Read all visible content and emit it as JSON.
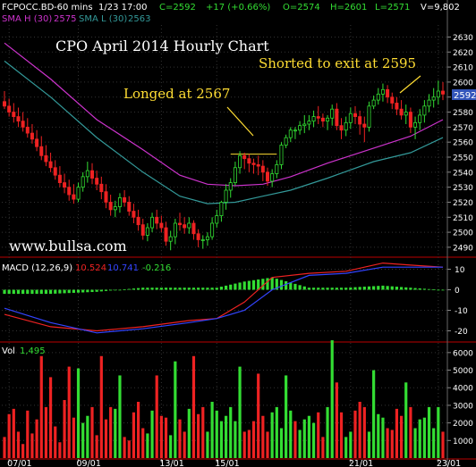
{
  "header": {
    "symbol": "FCPOCC.BD",
    "interval": "-60 mins",
    "datetime": "1/23 17:00",
    "close": "C=2592",
    "change": "+17 (+0.66%)",
    "open": "O=2574",
    "high": "H=2601",
    "low": "L=2571",
    "volume": "V=9,802",
    "sma_h_label": "SMA H (30)",
    "sma_h_value": "2575",
    "sma_l_label": "SMA L (30)",
    "sma_l_value": "2563"
  },
  "annotations": {
    "title": "CPO April 2014 Hourly Chart",
    "longed": "Longed at 2567",
    "shorted": "Shorted to exit at 2595",
    "watermark": "www.bullsa.com"
  },
  "macd": {
    "label": "MACD (12,26,9)",
    "macd_value": "10.524",
    "signal_value": "10.741",
    "hist_value": "-0.216"
  },
  "vol": {
    "label": "Vol",
    "value": "1,495"
  },
  "colors": {
    "up": "#33dd33",
    "down": "#ee2222",
    "sma_h": "#cc33cc",
    "sma_l": "#339999",
    "macd": "#ee2222",
    "signal": "#3344ff",
    "annotation": "#ffdd33",
    "grid": "#333333",
    "current_price_box": "#3355bb"
  },
  "chart_data": [
    {
      "type": "candlestick",
      "title": "CPO April 2014 Hourly Chart",
      "x_tick_labels": [
        "07/01",
        "09/01",
        "13/01",
        "15/01",
        "21/01",
        "23/01"
      ],
      "x_tick_indices": [
        1,
        16,
        34,
        46,
        75,
        94
      ],
      "y_ticks": [
        2490,
        2500,
        2510,
        2520,
        2530,
        2540,
        2550,
        2560,
        2570,
        2580,
        2590,
        2600,
        2610,
        2620,
        2630
      ],
      "ylim": [
        2484,
        2638
      ],
      "current_price": "2592",
      "series": [
        {
          "name": "candles",
          "open": [
            2587,
            2584,
            2580,
            2577,
            2574,
            2570,
            2566,
            2562,
            2557,
            2551,
            2547,
            2543,
            2538,
            2533,
            2530,
            2525,
            2522,
            2530,
            2537,
            2541,
            2536,
            2532,
            2527,
            2520,
            2515,
            2517,
            2523,
            2520,
            2514,
            2510,
            2505,
            2498,
            2503,
            2510,
            2506,
            2503,
            2494,
            2497,
            2506,
            2505,
            2503,
            2506,
            2499,
            2495,
            2495,
            2497,
            2506,
            2511,
            2520,
            2528,
            2533,
            2543,
            2551,
            2549,
            2546,
            2545,
            2544,
            2540,
            2534,
            2539,
            2545,
            2558,
            2563,
            2568,
            2568,
            2571,
            2572,
            2574,
            2577,
            2576,
            2574,
            2576,
            2582,
            2571,
            2568,
            2573,
            2579,
            2577,
            2572,
            2570,
            2584,
            2588,
            2592,
            2595,
            2590,
            2586,
            2582,
            2578,
            2580,
            2570,
            2573,
            2578,
            2584,
            2588,
            2590,
            2594
          ],
          "high": [
            2594,
            2589,
            2586,
            2583,
            2580,
            2576,
            2572,
            2568,
            2564,
            2558,
            2553,
            2548,
            2544,
            2539,
            2535,
            2532,
            2533,
            2540,
            2547,
            2546,
            2541,
            2537,
            2532,
            2525,
            2521,
            2526,
            2528,
            2524,
            2519,
            2515,
            2509,
            2506,
            2513,
            2515,
            2511,
            2507,
            2501,
            2509,
            2513,
            2510,
            2510,
            2508,
            2502,
            2498,
            2500,
            2510,
            2515,
            2521,
            2532,
            2536,
            2547,
            2554,
            2553,
            2552,
            2549,
            2551,
            2548,
            2543,
            2542,
            2548,
            2560,
            2565,
            2570,
            2570,
            2574,
            2578,
            2578,
            2581,
            2584,
            2579,
            2578,
            2585,
            2586,
            2576,
            2577,
            2583,
            2584,
            2581,
            2577,
            2587,
            2591,
            2596,
            2599,
            2598,
            2593,
            2590,
            2588,
            2585,
            2583,
            2577,
            2582,
            2588,
            2592,
            2596,
            2601,
            2600
          ],
          "low": [
            2582,
            2577,
            2573,
            2570,
            2567,
            2563,
            2559,
            2554,
            2548,
            2544,
            2540,
            2535,
            2530,
            2526,
            2521,
            2519,
            2520,
            2527,
            2533,
            2532,
            2528,
            2522,
            2516,
            2511,
            2510,
            2513,
            2517,
            2511,
            2506,
            2501,
            2495,
            2494,
            2500,
            2502,
            2500,
            2491,
            2488,
            2492,
            2501,
            2499,
            2499,
            2495,
            2490,
            2489,
            2491,
            2495,
            2503,
            2507,
            2515,
            2523,
            2531,
            2539,
            2542,
            2540,
            2539,
            2538,
            2534,
            2531,
            2530,
            2536,
            2542,
            2556,
            2560,
            2562,
            2565,
            2566,
            2568,
            2570,
            2572,
            2570,
            2568,
            2571,
            2568,
            2562,
            2564,
            2569,
            2572,
            2565,
            2560,
            2567,
            2582,
            2585,
            2587,
            2586,
            2582,
            2578,
            2575,
            2572,
            2566,
            2562,
            2568,
            2573,
            2580,
            2583,
            2585,
            2588
          ],
          "close": [
            2584,
            2580,
            2577,
            2574,
            2570,
            2566,
            2562,
            2557,
            2551,
            2547,
            2543,
            2538,
            2533,
            2530,
            2525,
            2522,
            2530,
            2537,
            2541,
            2536,
            2532,
            2527,
            2520,
            2515,
            2517,
            2523,
            2520,
            2514,
            2510,
            2505,
            2498,
            2503,
            2510,
            2506,
            2503,
            2494,
            2497,
            2506,
            2505,
            2503,
            2506,
            2499,
            2495,
            2495,
            2497,
            2506,
            2511,
            2520,
            2528,
            2533,
            2543,
            2551,
            2549,
            2546,
            2545,
            2544,
            2540,
            2534,
            2539,
            2545,
            2558,
            2563,
            2568,
            2568,
            2571,
            2572,
            2574,
            2577,
            2576,
            2574,
            2576,
            2582,
            2571,
            2568,
            2573,
            2579,
            2577,
            2572,
            2570,
            2584,
            2588,
            2592,
            2595,
            2590,
            2586,
            2582,
            2578,
            2580,
            2570,
            2573,
            2578,
            2584,
            2588,
            2590,
            2594,
            2592
          ]
        }
      ],
      "overlays": [
        {
          "name": "SMA H (30)",
          "x": [
            0,
            10,
            20,
            30,
            38,
            44,
            50,
            56,
            62,
            70,
            80,
            88,
            95
          ],
          "y": [
            2626,
            2602,
            2575,
            2555,
            2538,
            2532,
            2531,
            2532,
            2537,
            2546,
            2556,
            2564,
            2575
          ]
        },
        {
          "name": "SMA L (30)",
          "x": [
            0,
            10,
            20,
            30,
            38,
            44,
            50,
            56,
            62,
            70,
            80,
            88,
            95
          ],
          "y": [
            2614,
            2590,
            2563,
            2540,
            2524,
            2519,
            2520,
            2524,
            2528,
            2536,
            2547,
            2553,
            2563
          ]
        }
      ],
      "reference_line": {
        "value": 2552,
        "from_index": 49,
        "to_index": 59
      }
    },
    {
      "type": "line",
      "title": "MACD (12,26,9)",
      "y_ticks": [
        10,
        0,
        -10,
        -20
      ],
      "ylim": [
        -25,
        15
      ],
      "x": [
        0,
        10,
        20,
        30,
        40,
        46,
        52,
        58,
        66,
        74,
        82,
        88,
        95
      ],
      "series": [
        {
          "name": "MACD",
          "values": [
            -12,
            -18,
            -20,
            -18,
            -15,
            -14,
            -6,
            6,
            8,
            9,
            13,
            12,
            11
          ]
        },
        {
          "name": "Signal",
          "values": [
            -9,
            -16,
            -21,
            -19,
            -16,
            -14,
            -10,
            0,
            7,
            8,
            11,
            11,
            11
          ]
        },
        {
          "name": "Histogram",
          "values": [
            -2,
            -2,
            -1,
            1,
            1,
            1,
            4,
            6,
            1,
            1,
            2,
            1,
            -0.2
          ]
        }
      ]
    },
    {
      "type": "bar",
      "title": "Vol",
      "y_ticks": [
        1000,
        2000,
        3000,
        4000,
        5000,
        6000
      ],
      "ylim": [
        0,
        6500
      ],
      "values": [
        1200,
        2500,
        2800,
        1500,
        800,
        2700,
        1400,
        2200,
        5800,
        2900,
        4600,
        1800,
        900,
        3300,
        5200,
        2300,
        5100,
        2000,
        2400,
        2900,
        1300,
        5800,
        2200,
        2900,
        2800,
        4700,
        1200,
        1000,
        2600,
        3200,
        1700,
        1400,
        2700,
        4700,
        2400,
        2300,
        1300,
        5500,
        2200,
        1500,
        2800,
        5800,
        2500,
        2900,
        1500,
        3200,
        2700,
        2100,
        2400,
        2900,
        2100,
        5200,
        1500,
        1600,
        2100,
        4800,
        2400,
        1500,
        2600,
        2900,
        1700,
        4700,
        2700,
        2100,
        1600,
        2200,
        2400,
        2000,
        2600,
        1200,
        2900,
        6700,
        4300,
        2600,
        1200,
        1500,
        2700,
        3200,
        2900,
        1500,
        5000,
        2500,
        2300,
        1700,
        1600,
        2800,
        2400,
        4300,
        2900,
        1700,
        2200,
        2300,
        2900,
        1700,
        2900,
        1500
      ],
      "up": [
        false,
        false,
        false,
        false,
        false,
        false,
        false,
        false,
        false,
        false,
        false,
        false,
        false,
        false,
        false,
        false,
        true,
        true,
        true,
        false,
        false,
        false,
        false,
        false,
        true,
        true,
        false,
        false,
        false,
        false,
        false,
        true,
        true,
        false,
        false,
        false,
        true,
        true,
        false,
        false,
        true,
        false,
        false,
        false,
        true,
        true,
        true,
        true,
        true,
        true,
        true,
        true,
        false,
        false,
        false,
        false,
        false,
        false,
        true,
        true,
        true,
        true,
        true,
        false,
        true,
        true,
        true,
        true,
        false,
        false,
        true,
        true,
        false,
        false,
        true,
        true,
        false,
        false,
        false,
        true,
        true,
        true,
        true,
        false,
        false,
        false,
        false,
        true,
        false,
        true,
        true,
        true,
        true,
        true,
        true,
        false
      ]
    }
  ]
}
